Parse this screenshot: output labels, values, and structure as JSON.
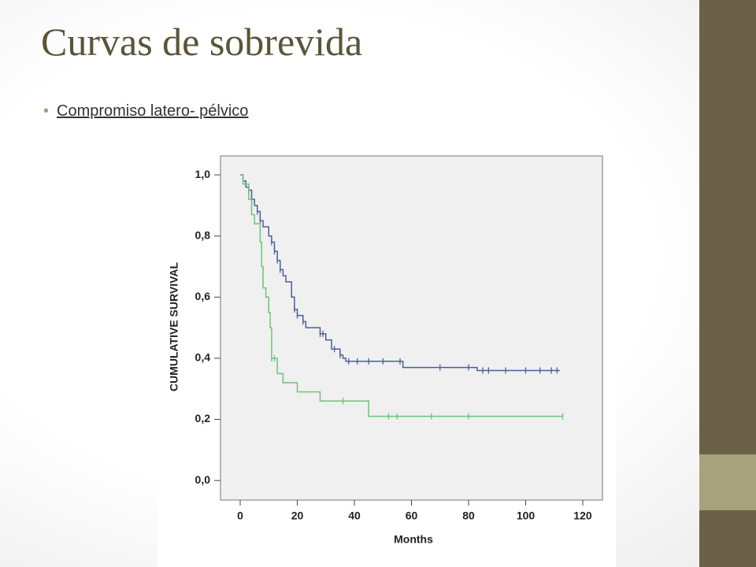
{
  "slide": {
    "title": "Curvas de sobrevida",
    "bullet": "Compromiso latero- pélvico"
  },
  "chart_data": {
    "type": "line",
    "step": "post",
    "xlabel": "Months",
    "ylabel": "CUMULATIVE SURVIVAL",
    "xlim": [
      -6.9,
      126.9
    ],
    "ylim": [
      -0.064,
      1.062
    ],
    "xticks": [
      0,
      20,
      40,
      60,
      80,
      100,
      120
    ],
    "yticks": [
      {
        "value": 0,
        "label": "0,0"
      },
      {
        "value": 0.2,
        "label": "0,2"
      },
      {
        "value": 0.4,
        "label": "0,4"
      },
      {
        "value": 0.6,
        "label": "0,6"
      },
      {
        "value": 0.8,
        "label": "0,8"
      },
      {
        "value": 1,
        "label": "1,0"
      }
    ],
    "series": [
      {
        "color": "#4a5f9a",
        "x": [
          0,
          1,
          2,
          3,
          4,
          5,
          6,
          7,
          8,
          10,
          11,
          12,
          13,
          14,
          15,
          16,
          18,
          19,
          20,
          22,
          23,
          28,
          30,
          32,
          35,
          36,
          37,
          57,
          83,
          112
        ],
        "values": [
          1.0,
          0.98,
          0.96,
          0.95,
          0.92,
          0.9,
          0.88,
          0.85,
          0.83,
          0.8,
          0.78,
          0.75,
          0.72,
          0.69,
          0.67,
          0.65,
          0.6,
          0.56,
          0.54,
          0.52,
          0.5,
          0.48,
          0.46,
          0.43,
          0.41,
          0.4,
          0.39,
          0.37,
          0.36,
          0.36
        ],
        "censored": {
          "x": [
            3,
            6,
            7,
            11,
            12,
            13,
            14,
            19,
            20,
            22,
            28,
            29,
            33,
            35,
            38,
            41,
            45,
            50,
            56,
            70,
            80,
            85,
            87,
            93,
            100,
            105,
            109,
            111
          ],
          "values": [
            0.95,
            0.88,
            0.85,
            0.78,
            0.75,
            0.72,
            0.69,
            0.56,
            0.54,
            0.52,
            0.48,
            0.48,
            0.43,
            0.41,
            0.39,
            0.39,
            0.39,
            0.39,
            0.39,
            0.37,
            0.37,
            0.36,
            0.36,
            0.36,
            0.36,
            0.36,
            0.36,
            0.36
          ]
        }
      },
      {
        "color": "#6cc47a",
        "x": [
          0,
          1,
          3,
          4,
          5,
          7,
          7.5,
          8,
          9,
          10,
          10.5,
          11,
          13,
          15,
          20,
          28,
          45,
          113
        ],
        "values": [
          1.0,
          0.97,
          0.92,
          0.87,
          0.84,
          0.78,
          0.7,
          0.63,
          0.6,
          0.55,
          0.5,
          0.4,
          0.35,
          0.32,
          0.29,
          0.26,
          0.21,
          0.21
        ],
        "censored": {
          "x": [
            11,
            12,
            36,
            52,
            55,
            67,
            80,
            113
          ],
          "values": [
            0.4,
            0.4,
            0.26,
            0.21,
            0.21,
            0.21,
            0.21,
            0.21
          ]
        }
      }
    ]
  }
}
